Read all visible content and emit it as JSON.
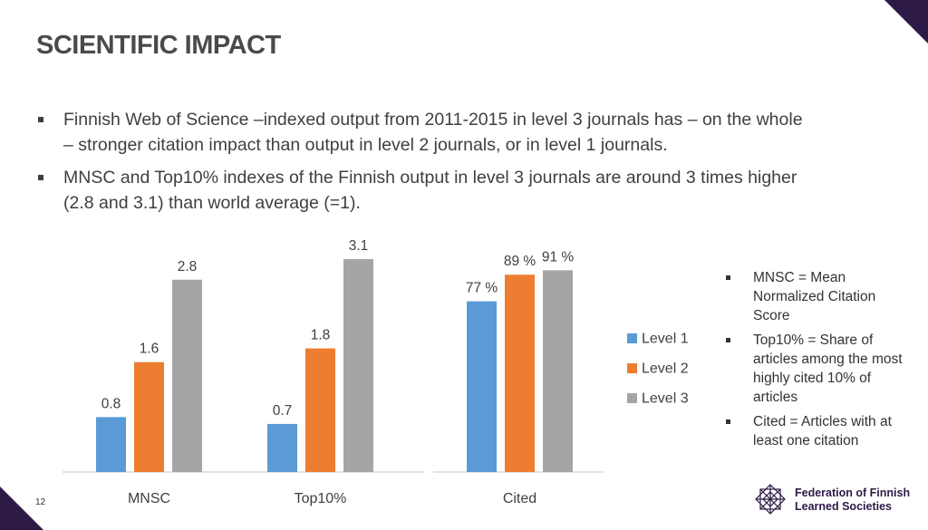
{
  "slide": {
    "title": "SCIENTIFIC IMPACT",
    "bullets": [
      "Finnish Web of Science –indexed output from 2011-2015 in level 3 journals has – on the whole – stronger citation impact than output in level 2 journals, or in level 1 journals.",
      "MNSC and Top10% indexes of the Finnish output in level 3 journals are around 3 times higher (2.8 and 3.1) than world average (=1)."
    ],
    "definitions": [
      "MNSC = Mean Normalized Citation Score",
      "Top10% = Share of articles among the most highly cited 10% of articles",
      "Cited = Articles with at least one citation"
    ],
    "page_number": "12",
    "organization": {
      "name_line1": "Federation of Finnish",
      "name_line2": "Learned Societies",
      "logo_icon": "star-lattice-icon"
    },
    "colors": {
      "accent": "#2e1a47",
      "level1": "#5b9bd5",
      "level2": "#ed7d31",
      "level3": "#a5a5a5"
    }
  },
  "chart_data": {
    "type": "bar",
    "groups": [
      {
        "category": "MNSC",
        "series": [
          {
            "name": "Level 1",
            "value": 0.8,
            "label": "0.8"
          },
          {
            "name": "Level 2",
            "value": 1.6,
            "label": "1.6"
          },
          {
            "name": "Level 3",
            "value": 2.8,
            "label": "2.8"
          }
        ]
      },
      {
        "category": "Top10%",
        "series": [
          {
            "name": "Level 1",
            "value": 0.7,
            "label": "0.7"
          },
          {
            "name": "Level 2",
            "value": 1.8,
            "label": "1.8"
          },
          {
            "name": "Level 3",
            "value": 3.1,
            "label": "3.1"
          }
        ]
      },
      {
        "category": "Cited",
        "unit": "%",
        "series": [
          {
            "name": "Level 1",
            "value": 77,
            "label": "77 %"
          },
          {
            "name": "Level 2",
            "value": 89,
            "label": "89 %"
          },
          {
            "name": "Level 3",
            "value": 91,
            "label": "91 %"
          }
        ]
      }
    ],
    "legend": {
      "position": "right",
      "entries": [
        {
          "name": "Level 1",
          "color": "#5b9bd5"
        },
        {
          "name": "Level 2",
          "color": "#ed7d31"
        },
        {
          "name": "Level 3",
          "color": "#a5a5a5"
        }
      ]
    },
    "axes": {
      "left_panel_ylim": [
        0,
        3.1
      ],
      "right_panel_ylim": [
        0,
        100
      ]
    },
    "grid": false
  }
}
